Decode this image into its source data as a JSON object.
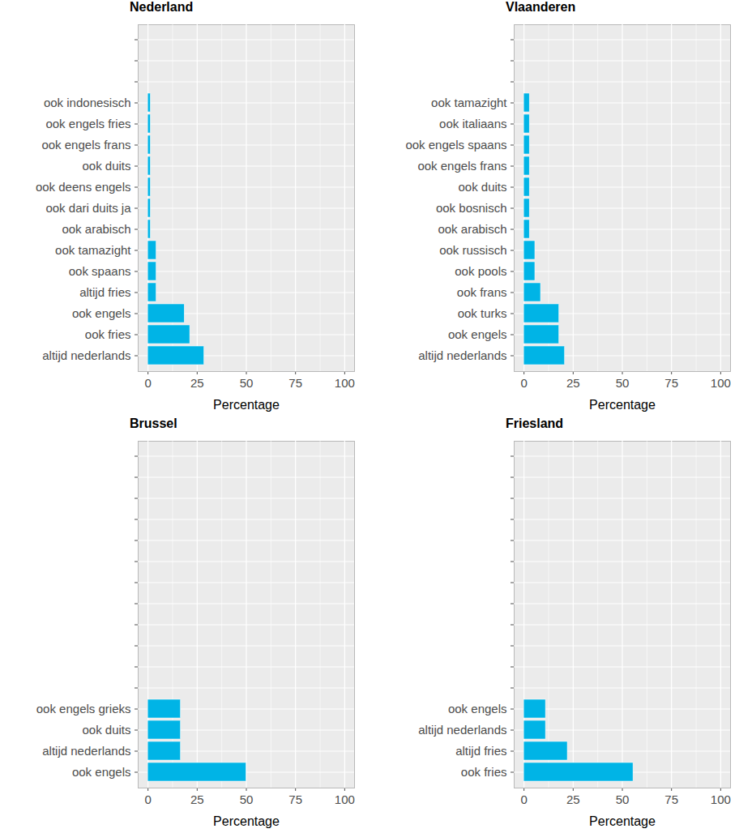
{
  "chart_data": [
    {
      "type": "bar",
      "orientation": "horizontal",
      "title": "Nederland",
      "color": "#00b4e6",
      "categories": [
        null,
        null,
        null,
        "ook indonesisch",
        "ook engels fries",
        "ook engels frans",
        "ook duits",
        "ook deens engels",
        "ook dari duits ja",
        "ook arabisch",
        "ook tamazight",
        "ook spaans",
        "altijd fries",
        "ook engels",
        "ook fries",
        "altijd nederlands"
      ],
      "values": [
        null,
        null,
        null,
        1.4,
        1.4,
        1.4,
        1.4,
        1.4,
        1.4,
        1.4,
        4.3,
        4.3,
        4.3,
        18.6,
        21.4,
        28.6
      ],
      "xlim": [
        -5,
        105
      ],
      "xticks": [
        0,
        25,
        50,
        75,
        100
      ],
      "x_label": "Percentage",
      "grid": true
    },
    {
      "type": "bar",
      "orientation": "horizontal",
      "title": "Vlaanderen",
      "color": "#00b4e6",
      "categories": [
        null,
        null,
        null,
        "ook tamazight",
        "ook italiaans",
        "ook engels spaans",
        "ook engels frans",
        "ook duits",
        "ook bosnisch",
        "ook arabisch",
        "ook russisch",
        "ook pools",
        "ook frans",
        "ook turks",
        "ook engels",
        "altijd nederlands"
      ],
      "values": [
        null,
        null,
        null,
        2.9,
        2.9,
        2.9,
        2.9,
        2.9,
        2.9,
        2.9,
        5.7,
        5.7,
        8.6,
        17.9,
        17.9,
        20.8
      ],
      "xlim": [
        -5,
        105
      ],
      "xticks": [
        0,
        25,
        50,
        75,
        100
      ],
      "x_label": "Percentage",
      "grid": true
    },
    {
      "type": "bar",
      "orientation": "horizontal",
      "title": "Brussel",
      "color": "#00b4e6",
      "categories": [
        null,
        null,
        null,
        null,
        null,
        null,
        null,
        null,
        null,
        null,
        null,
        null,
        "ook engels grieks",
        "ook duits",
        "altijd nederlands",
        "ook engels"
      ],
      "values": [
        null,
        null,
        null,
        null,
        null,
        null,
        null,
        null,
        null,
        null,
        null,
        null,
        16.7,
        16.7,
        16.7,
        50
      ],
      "xlim": [
        -5,
        105
      ],
      "xticks": [
        0,
        25,
        50,
        75,
        100
      ],
      "x_label": "Percentage",
      "grid": true
    },
    {
      "type": "bar",
      "orientation": "horizontal",
      "title": "Friesland",
      "color": "#00b4e6",
      "categories": [
        null,
        null,
        null,
        null,
        null,
        null,
        null,
        null,
        null,
        null,
        null,
        null,
        "ook engels",
        "altijd nederlands",
        "altijd fries",
        "ook fries"
      ],
      "values": [
        null,
        null,
        null,
        null,
        null,
        null,
        null,
        null,
        null,
        null,
        null,
        null,
        11.1,
        11.1,
        22.2,
        55.6
      ],
      "xlim": [
        -5,
        105
      ],
      "xticks": [
        0,
        25,
        50,
        75,
        100
      ],
      "x_label": "Percentage",
      "grid": true
    }
  ]
}
